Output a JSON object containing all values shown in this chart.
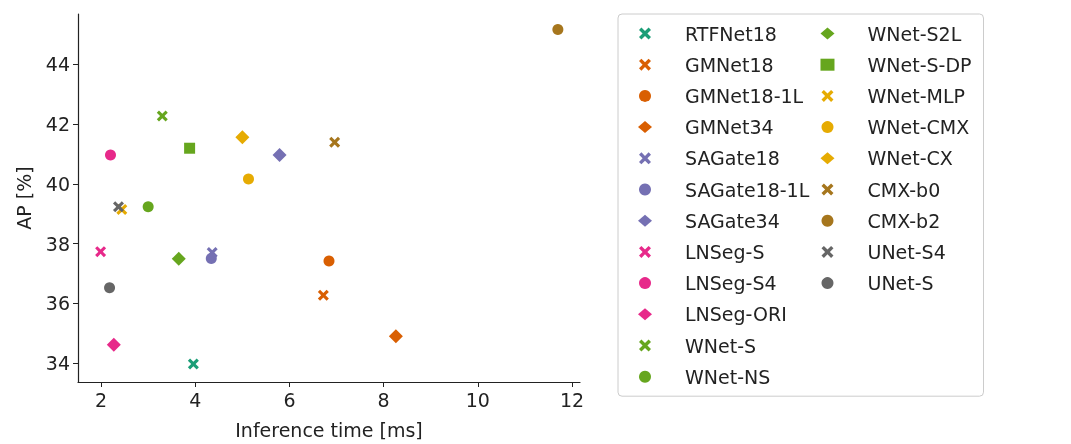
{
  "chart_data": {
    "type": "scatter",
    "xlabel": "Inference time [ms]",
    "ylabel": "AP [%]",
    "xlim": [
      1.51,
      12.17
    ],
    "xticks": [
      2,
      4,
      6,
      8,
      10,
      12
    ],
    "ylim": [
      33.37,
      45.68
    ],
    "yticks": [
      34,
      36,
      38,
      40,
      42,
      44
    ],
    "grid": false,
    "legend": "right",
    "series": [
      {
        "name": "RTFNet18",
        "color": "#1b9e77",
        "marker": "cross",
        "x": [
          3.96
        ],
        "values": [
          33.97
        ]
      },
      {
        "name": "GMNet18",
        "color": "#d95f02",
        "marker": "cross",
        "x": [
          6.72
        ],
        "values": [
          36.27
        ]
      },
      {
        "name": "GMNet18-1L",
        "color": "#d95f02",
        "marker": "circle",
        "x": [
          6.84
        ],
        "values": [
          37.42
        ]
      },
      {
        "name": "GMNet34",
        "color": "#d95f02",
        "marker": "diamond",
        "x": [
          8.26
        ],
        "values": [
          34.9
        ]
      },
      {
        "name": "SAGate18",
        "color": "#7570b3",
        "marker": "cross",
        "x": [
          4.36
        ],
        "values": [
          37.7
        ]
      },
      {
        "name": "SAGate18-1L",
        "color": "#7570b3",
        "marker": "circle",
        "x": [
          4.34
        ],
        "values": [
          37.5
        ]
      },
      {
        "name": "SAGate34",
        "color": "#7570b3",
        "marker": "diamond",
        "x": [
          5.79
        ],
        "values": [
          40.96
        ]
      },
      {
        "name": "LNSeg-S",
        "color": "#e7298a",
        "marker": "cross",
        "x": [
          1.99
        ],
        "values": [
          37.73
        ]
      },
      {
        "name": "LNSeg-S4",
        "color": "#e7298a",
        "marker": "circle",
        "x": [
          2.2
        ],
        "values": [
          40.96
        ]
      },
      {
        "name": "LNSeg-ORI",
        "color": "#e7298a",
        "marker": "diamond",
        "x": [
          2.27
        ],
        "values": [
          34.62
        ]
      },
      {
        "name": "WNet-S",
        "color": "#66a61e",
        "marker": "cross",
        "x": [
          3.3
        ],
        "values": [
          42.27
        ]
      },
      {
        "name": "WNet-NS",
        "color": "#66a61e",
        "marker": "circle",
        "x": [
          3.0
        ],
        "values": [
          39.23
        ]
      },
      {
        "name": "WNet-S2L",
        "color": "#66a61e",
        "marker": "diamond",
        "x": [
          3.65
        ],
        "values": [
          37.49
        ]
      },
      {
        "name": "WNet-S-DP",
        "color": "#66a61e",
        "marker": "square",
        "x": [
          3.88
        ],
        "values": [
          41.19
        ]
      },
      {
        "name": "WNet-MLP",
        "color": "#e6ab02",
        "marker": "cross",
        "x": [
          2.44
        ],
        "values": [
          39.14
        ]
      },
      {
        "name": "WNet-CMX",
        "color": "#e6ab02",
        "marker": "circle",
        "x": [
          5.13
        ],
        "values": [
          40.16
        ]
      },
      {
        "name": "WNet-CX",
        "color": "#e6ab02",
        "marker": "diamond",
        "x": [
          5.0
        ],
        "values": [
          41.56
        ]
      },
      {
        "name": "CMX-b0",
        "color": "#a6761d",
        "marker": "cross",
        "x": [
          6.96
        ],
        "values": [
          41.39
        ]
      },
      {
        "name": "CMX-b2",
        "color": "#a6761d",
        "marker": "circle",
        "x": [
          11.7
        ],
        "values": [
          45.16
        ]
      },
      {
        "name": "UNet-S4",
        "color": "#666666",
        "marker": "cross",
        "x": [
          2.37
        ],
        "values": [
          39.23
        ]
      },
      {
        "name": "UNet-S",
        "color": "#666666",
        "marker": "circle",
        "x": [
          2.18
        ],
        "values": [
          36.52
        ]
      }
    ]
  }
}
